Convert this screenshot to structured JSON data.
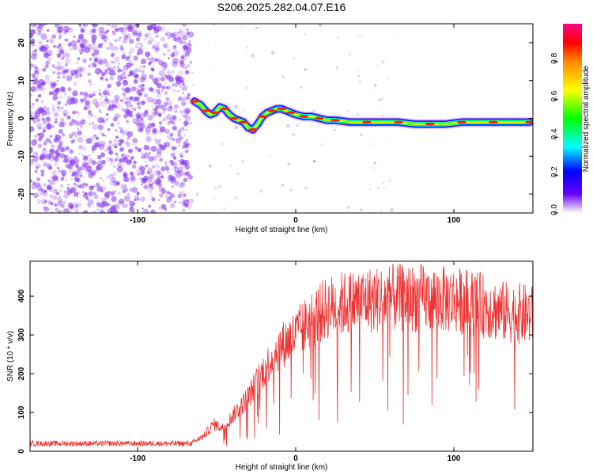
{
  "title": "S206.2025.282.04.07.E16",
  "colors": {
    "snr_line": "#ee3333",
    "noise_purple": "#8a3cf0"
  },
  "chart_data": [
    {
      "type": "heatmap",
      "name": "spectrogram",
      "xlabel": "Height of straight line (km)",
      "ylabel": "Frequency (Hz)",
      "xlim": [
        -168,
        150
      ],
      "ylim": [
        -25,
        25
      ],
      "xticks": [
        {
          "v": -100,
          "t": "-100"
        },
        {
          "v": 0,
          "t": "0"
        },
        {
          "v": 100,
          "t": "100"
        }
      ],
      "yticks": [
        {
          "v": -20,
          "t": "-20"
        },
        {
          "v": -10,
          "t": "-10"
        },
        {
          "v": 0,
          "t": "0"
        },
        {
          "v": 10,
          "t": "10"
        },
        {
          "v": 20,
          "t": "20"
        }
      ],
      "noise_region_x": [
        -168,
        -66
      ],
      "signal_track": {
        "x": [
          -64,
          -60,
          -57,
          -54,
          -51,
          -48,
          -45,
          -42,
          -39,
          -36,
          -33,
          -30,
          -27,
          -24,
          -21,
          -18,
          -15,
          -12,
          -9,
          -6,
          -3,
          0,
          5,
          10,
          15,
          20,
          25,
          35,
          45,
          55,
          65,
          75,
          85,
          95,
          105,
          115,
          125,
          135,
          148
        ],
        "y": [
          4.5,
          3.5,
          2.0,
          1.0,
          1.5,
          3.0,
          2.5,
          1.0,
          0.0,
          -0.5,
          -1.0,
          -2.5,
          -3.0,
          -1.5,
          0.5,
          1.5,
          2.0,
          2.5,
          2.5,
          2.0,
          1.5,
          1.0,
          0.5,
          0.5,
          0.0,
          -0.5,
          -0.5,
          -1.0,
          -1.0,
          -1.0,
          -1.0,
          -1.5,
          -1.5,
          -1.5,
          -1.0,
          -1.0,
          -1.0,
          -1.0,
          -1.0
        ]
      },
      "colorbar": {
        "label": "Normalized spectral amplitude",
        "range": [
          0,
          1
        ],
        "ticks": [
          {
            "v": 0.0,
            "t": "0.0"
          },
          {
            "v": 0.2,
            "t": "0.2"
          },
          {
            "v": 0.4,
            "t": "0.4"
          },
          {
            "v": 0.6,
            "t": "0.6"
          },
          {
            "v": 0.8,
            "t": "0.8"
          }
        ]
      }
    },
    {
      "type": "line",
      "name": "snr",
      "xlabel": "Height of straight line (km)",
      "ylabel": "SNR (10 * v/v)",
      "xlim": [
        -168,
        150
      ],
      "ylim": [
        0,
        490
      ],
      "xticks": [
        {
          "v": -100,
          "t": "-100"
        },
        {
          "v": 0,
          "t": "0"
        },
        {
          "v": 100,
          "t": "100"
        }
      ],
      "yticks": [
        {
          "v": 0,
          "t": "0"
        },
        {
          "v": 100,
          "t": "100"
        },
        {
          "v": 200,
          "t": "200"
        },
        {
          "v": 300,
          "t": "300"
        },
        {
          "v": 400,
          "t": "400"
        }
      ],
      "envelope": {
        "x": [
          -168,
          -120,
          -80,
          -66,
          -58,
          -52,
          -46,
          -40,
          -30,
          -20,
          -10,
          0,
          10,
          20,
          30,
          45,
          60,
          80,
          100,
          115,
          130,
          150
        ],
        "y": [
          20,
          20,
          20,
          20,
          40,
          70,
          60,
          90,
          140,
          210,
          270,
          300,
          340,
          370,
          380,
          390,
          395,
          395,
          390,
          380,
          360,
          350
        ]
      }
    }
  ]
}
